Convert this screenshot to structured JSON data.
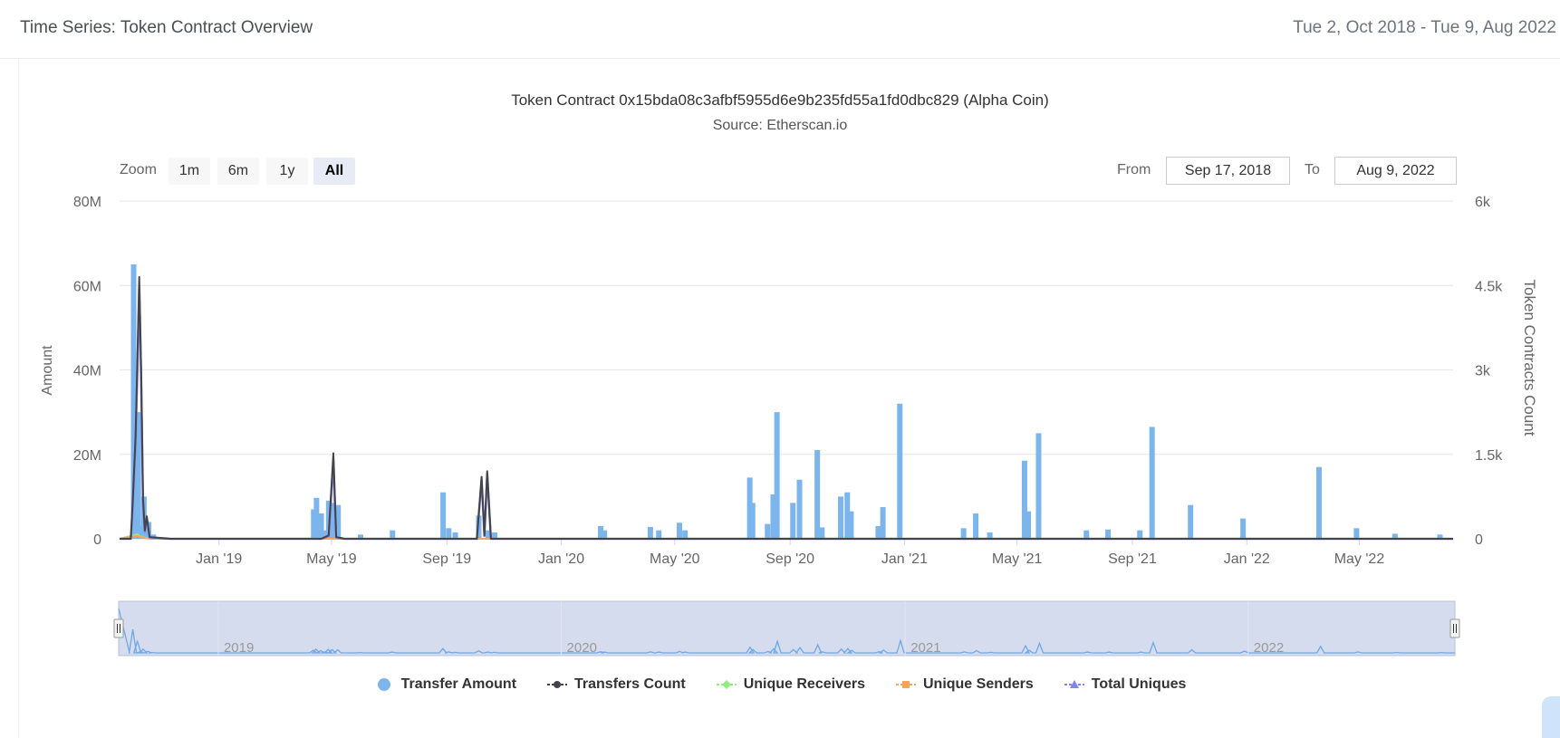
{
  "header": {
    "title": "Time Series: Token Contract Overview",
    "date_range": "Tue 2, Oct 2018 - Tue 9, Aug 2022"
  },
  "toolbar": {
    "zoom_label": "Zoom",
    "zoom_buttons": [
      "1m",
      "6m",
      "1y",
      "All"
    ],
    "active_zoom": "All",
    "from_label": "From",
    "from_value": "Sep 17, 2018",
    "to_label": "To",
    "to_value": "Aug 9, 2022"
  },
  "colors": {
    "transfer_amount": "#7cb5ec",
    "transfers_count": "#434348",
    "unique_receivers": "#90ed7d",
    "unique_senders": "#f7a35c",
    "total_uniques": "#8085e9",
    "navigator_fill": "#ccd6eb"
  },
  "chart_data": {
    "type": "bar",
    "title": "Token Contract 0x15bda08c3afbf5955d6e9b235fd55a1fd0dbc829 (Alpha Coin)",
    "subtitle": "Source: Etherscan.io",
    "ylabel_left": "Amount",
    "ylabel_right": "Token Contracts Count",
    "y_left_ticks": [
      "0",
      "20M",
      "40M",
      "60M",
      "80M"
    ],
    "y_right_ticks": [
      "0",
      "1.5k",
      "3k",
      "4.5k",
      "6k"
    ],
    "ylim_left": [
      0,
      80000000
    ],
    "ylim_right": [
      0,
      6000
    ],
    "xlim": [
      "2018-09-17",
      "2022-08-09"
    ],
    "x_ticks": [
      "Jan '19",
      "May '19",
      "Sep '19",
      "Jan '20",
      "May '20",
      "Sep '20",
      "Jan '21",
      "May '21",
      "Sep '21",
      "Jan '22",
      "May '22"
    ],
    "x_tick_dates": [
      "2019-01-01",
      "2019-05-01",
      "2019-09-01",
      "2020-01-01",
      "2020-05-01",
      "2020-09-01",
      "2021-01-01",
      "2021-05-01",
      "2021-09-01",
      "2022-01-01",
      "2022-05-01"
    ],
    "navigator_labels": [
      "2019",
      "2020",
      "2021",
      "2022"
    ],
    "navigator_label_dates": [
      "2019-01-01",
      "2020-01-01",
      "2021-01-01",
      "2022-01-01"
    ],
    "legend_position": "bottom",
    "grid": true,
    "series": [
      {
        "name": "Transfer Amount",
        "type": "column",
        "axis": "left",
        "points": [
          [
            "2018-10-02",
            65000000
          ],
          [
            "2018-10-07",
            30000000
          ],
          [
            "2018-10-10",
            3000000
          ],
          [
            "2018-10-13",
            10000000
          ],
          [
            "2018-10-18",
            4000000
          ],
          [
            "2018-10-23",
            1000000
          ],
          [
            "2019-04-12",
            7000000
          ],
          [
            "2019-04-15",
            9700000
          ],
          [
            "2019-04-20",
            6000000
          ],
          [
            "2019-04-24",
            2000000
          ],
          [
            "2019-04-28",
            9000000
          ],
          [
            "2019-05-02",
            8500000
          ],
          [
            "2019-05-08",
            8000000
          ],
          [
            "2019-06-01",
            1000000
          ],
          [
            "2019-07-05",
            2000000
          ],
          [
            "2019-08-28",
            11000000
          ],
          [
            "2019-09-03",
            2500000
          ],
          [
            "2019-09-10",
            1500000
          ],
          [
            "2019-10-05",
            5500000
          ],
          [
            "2019-10-15",
            2000000
          ],
          [
            "2019-10-22",
            1500000
          ],
          [
            "2020-02-12",
            3000000
          ],
          [
            "2020-02-16",
            2000000
          ],
          [
            "2020-04-05",
            2800000
          ],
          [
            "2020-04-14",
            2000000
          ],
          [
            "2020-05-06",
            3800000
          ],
          [
            "2020-05-12",
            2000000
          ],
          [
            "2020-07-20",
            14500000
          ],
          [
            "2020-07-23",
            8500000
          ],
          [
            "2020-08-08",
            3500000
          ],
          [
            "2020-08-14",
            10500000
          ],
          [
            "2020-08-18",
            30000000
          ],
          [
            "2020-09-04",
            8500000
          ],
          [
            "2020-09-11",
            14000000
          ],
          [
            "2020-09-30",
            21000000
          ],
          [
            "2020-10-05",
            2700000
          ],
          [
            "2020-10-25",
            10000000
          ],
          [
            "2020-11-01",
            11000000
          ],
          [
            "2020-11-05",
            6500000
          ],
          [
            "2020-12-04",
            3000000
          ],
          [
            "2020-12-09",
            7500000
          ],
          [
            "2020-12-27",
            32000000
          ],
          [
            "2021-03-05",
            2500000
          ],
          [
            "2021-03-18",
            6000000
          ],
          [
            "2021-04-02",
            1500000
          ],
          [
            "2021-05-09",
            18500000
          ],
          [
            "2021-05-13",
            6500000
          ],
          [
            "2021-05-24",
            25000000
          ],
          [
            "2021-07-14",
            2000000
          ],
          [
            "2021-08-06",
            2200000
          ],
          [
            "2021-09-09",
            2000000
          ],
          [
            "2021-09-22",
            26500000
          ],
          [
            "2021-11-02",
            8000000
          ],
          [
            "2021-12-28",
            4800000
          ],
          [
            "2022-03-19",
            17000000
          ],
          [
            "2022-04-28",
            2500000
          ],
          [
            "2022-06-08",
            1200000
          ],
          [
            "2022-07-26",
            1000000
          ]
        ]
      },
      {
        "name": "Transfers Count",
        "type": "line",
        "axis": "right",
        "points": [
          [
            "2018-09-17",
            0
          ],
          [
            "2018-09-29",
            0
          ],
          [
            "2018-10-01",
            650
          ],
          [
            "2018-10-04",
            1800
          ],
          [
            "2018-10-06",
            3200
          ],
          [
            "2018-10-08",
            4650
          ],
          [
            "2018-10-10",
            3000
          ],
          [
            "2018-10-12",
            700
          ],
          [
            "2018-10-14",
            150
          ],
          [
            "2018-10-16",
            400
          ],
          [
            "2018-10-19",
            30
          ],
          [
            "2018-11-10",
            0
          ],
          [
            "2019-04-20",
            0
          ],
          [
            "2019-04-28",
            60
          ],
          [
            "2019-05-03",
            1520
          ],
          [
            "2019-05-06",
            30
          ],
          [
            "2019-05-15",
            0
          ],
          [
            "2019-10-03",
            0
          ],
          [
            "2019-10-08",
            1100
          ],
          [
            "2019-10-11",
            60
          ],
          [
            "2019-10-14",
            1200
          ],
          [
            "2019-10-18",
            0
          ],
          [
            "2022-08-09",
            0
          ]
        ]
      },
      {
        "name": "Unique Receivers",
        "type": "line",
        "axis": "right",
        "points": [
          [
            "2018-09-17",
            0
          ],
          [
            "2018-10-06",
            80
          ],
          [
            "2018-10-09",
            40
          ],
          [
            "2018-10-20",
            0
          ],
          [
            "2022-08-09",
            0
          ]
        ]
      },
      {
        "name": "Unique Senders",
        "type": "line",
        "axis": "right",
        "points": [
          [
            "2018-09-17",
            0
          ],
          [
            "2018-10-06",
            50
          ],
          [
            "2018-10-09",
            30
          ],
          [
            "2018-10-20",
            0
          ],
          [
            "2022-08-09",
            0
          ]
        ]
      },
      {
        "name": "Total Uniques",
        "type": "line",
        "axis": "right",
        "points": [
          [
            "2018-09-17",
            0
          ],
          [
            "2018-09-29",
            0
          ],
          [
            "2018-10-01",
            600
          ],
          [
            "2018-10-04",
            1700
          ],
          [
            "2018-10-06",
            3000
          ],
          [
            "2018-10-08",
            4500
          ],
          [
            "2018-10-10",
            2800
          ],
          [
            "2018-10-12",
            650
          ],
          [
            "2018-10-14",
            120
          ],
          [
            "2018-10-16",
            380
          ],
          [
            "2018-10-19",
            25
          ],
          [
            "2018-11-10",
            0
          ],
          [
            "2019-04-20",
            0
          ],
          [
            "2019-04-28",
            50
          ],
          [
            "2019-05-03",
            1380
          ],
          [
            "2019-05-06",
            25
          ],
          [
            "2019-05-15",
            0
          ],
          [
            "2019-10-03",
            0
          ],
          [
            "2019-10-08",
            1050
          ],
          [
            "2019-10-11",
            50
          ],
          [
            "2019-10-14",
            1150
          ],
          [
            "2019-10-18",
            0
          ],
          [
            "2022-08-09",
            0
          ]
        ]
      }
    ]
  }
}
